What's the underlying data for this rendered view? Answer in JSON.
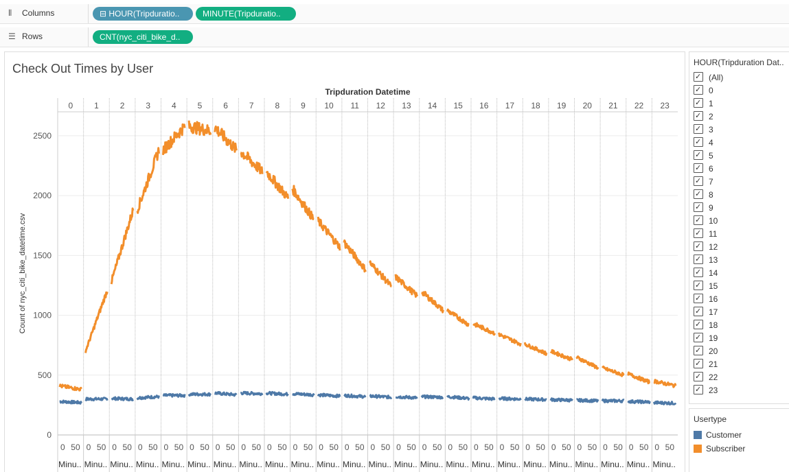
{
  "shelves": {
    "columns": {
      "label": "Columns",
      "icon": "columns-icon",
      "pills": [
        {
          "text": "⊟ HOUR(Tripduratio..",
          "color": "#4a96b1"
        },
        {
          "text": "MINUTE(Tripduratio..",
          "color": "#12ae81"
        }
      ]
    },
    "rows": {
      "label": "Rows",
      "icon": "rows-icon",
      "pills": [
        {
          "text": "CNT(nyc_citi_bike_d..",
          "color": "#12ae81"
        }
      ]
    }
  },
  "filter": {
    "title": "HOUR(Tripduration Dat..",
    "items": [
      "(All)",
      "0",
      "1",
      "2",
      "3",
      "4",
      "5",
      "6",
      "7",
      "8",
      "9",
      "10",
      "11",
      "12",
      "13",
      "14",
      "15",
      "16",
      "17",
      "18",
      "19",
      "20",
      "21",
      "22",
      "23"
    ]
  },
  "legend": {
    "title": "Usertype",
    "items": [
      {
        "label": "Customer",
        "color": "#4e79a7"
      },
      {
        "label": "Subscriber",
        "color": "#f28e2b"
      }
    ]
  },
  "chart_data": {
    "type": "line",
    "title": "Check Out Times by User",
    "header_title": "Tripduration Datetime",
    "ylabel": "Count of nyc_citi_bike_datetime.csv",
    "ylim": [
      0,
      2700
    ],
    "yticks": [
      0,
      500,
      1000,
      1500,
      2000,
      2500
    ],
    "categories": [
      "0",
      "1",
      "2",
      "3",
      "4",
      "5",
      "6",
      "7",
      "8",
      "9",
      "10",
      "11",
      "12",
      "13",
      "14",
      "15",
      "16",
      "17",
      "18",
      "19",
      "20",
      "21",
      "22",
      "23"
    ],
    "minute_ticks": [
      "0",
      "50"
    ],
    "minute_label": "Minu..",
    "series": [
      {
        "name": "Customer",
        "color": "#4e79a7",
        "values": [
          [
            280,
            270
          ],
          [
            300,
            300
          ],
          [
            305,
            300
          ],
          [
            310,
            320
          ],
          [
            330,
            330
          ],
          [
            340,
            340
          ],
          [
            350,
            335
          ],
          [
            350,
            345
          ],
          [
            350,
            340
          ],
          [
            345,
            335
          ],
          [
            335,
            325
          ],
          [
            330,
            320
          ],
          [
            325,
            315
          ],
          [
            320,
            310
          ],
          [
            320,
            315
          ],
          [
            320,
            305
          ],
          [
            310,
            300
          ],
          [
            305,
            300
          ],
          [
            300,
            295
          ],
          [
            295,
            290
          ],
          [
            290,
            285
          ],
          [
            285,
            285
          ],
          [
            280,
            275
          ],
          [
            270,
            265
          ]
        ]
      },
      {
        "name": "Subscriber",
        "color": "#f28e2b",
        "values": [
          [
            410,
            380
          ],
          [
            700,
            1210
          ],
          [
            1280,
            1880
          ],
          [
            1880,
            2380
          ],
          [
            2380,
            2580
          ],
          [
            2580,
            2540
          ],
          [
            2570,
            2380
          ],
          [
            2370,
            2200
          ],
          [
            2200,
            1980
          ],
          [
            2060,
            1800
          ],
          [
            1790,
            1570
          ],
          [
            1610,
            1380
          ],
          [
            1440,
            1240
          ],
          [
            1320,
            1160
          ],
          [
            1200,
            1040
          ],
          [
            1040,
            920
          ],
          [
            930,
            850
          ],
          [
            840,
            760
          ],
          [
            760,
            680
          ],
          [
            700,
            630
          ],
          [
            650,
            560
          ],
          [
            560,
            500
          ],
          [
            510,
            440
          ],
          [
            450,
            410
          ]
        ]
      }
    ]
  }
}
